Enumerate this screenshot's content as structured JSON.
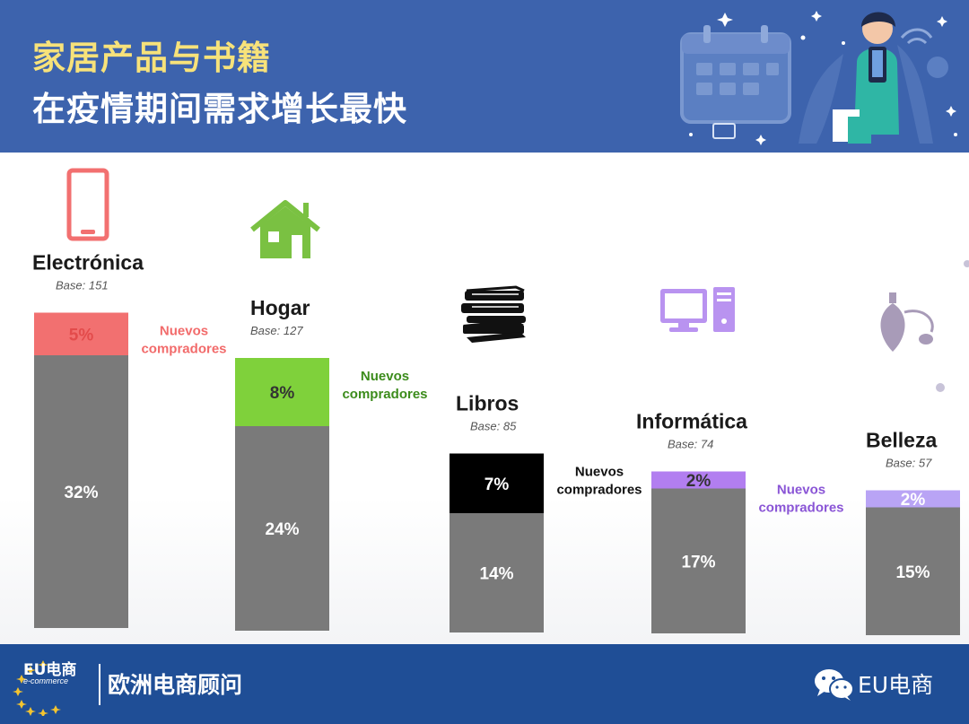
{
  "header": {
    "title_line1": "家居产品与书籍",
    "title_line2": "在疫情期间需求增长最快"
  },
  "footer": {
    "logo_text": "EU电商",
    "logo_subtext": "e-commerce",
    "name": "欧洲电商顾问",
    "brand": "EU电商"
  },
  "colors": {
    "header_bg": "#3d63ad",
    "title_yellow": "#f7e27a",
    "footer_bg": "#1f4e96",
    "bar_gray": "#7a7a7a"
  },
  "chart_data": {
    "type": "bar",
    "stacked": true,
    "categories": [
      "Electrónica",
      "Hogar",
      "Libros",
      "Informática",
      "Belleza"
    ],
    "bases": [
      "Base: 151",
      "Base: 127",
      "Base: 85",
      "Base: 74",
      "Base: 57"
    ],
    "series": [
      {
        "values": [
          32,
          24,
          14,
          17,
          15
        ],
        "labels": [
          "32%",
          "24%",
          "14%",
          "17%",
          "15%"
        ]
      },
      {
        "name": "Nuevos compradores",
        "values": [
          5,
          8,
          7,
          2,
          2
        ],
        "labels": [
          "5%",
          "8%",
          "7%",
          "2%",
          "2%"
        ],
        "colors": [
          "#f27070",
          "#7fd13b",
          "#000000",
          "#b27ef0",
          "#b9a4f5"
        ],
        "label_colors": [
          "#e34b4b",
          "#333333",
          "#ffffff",
          "#333333",
          "#ffffff"
        ]
      }
    ],
    "annotations": [
      {
        "category": "Electrónica",
        "line1": "Nuevos",
        "line2": "compradores",
        "color": "#f26b6b"
      },
      {
        "category": "Hogar",
        "line1": "Nuevos",
        "line2": "compradores",
        "color": "#3c8c1c"
      },
      {
        "category": "Libros",
        "line1": "Nuevos",
        "line2": "compradores",
        "color": "#111111"
      },
      {
        "category": "Informática",
        "line1": "Nuevos",
        "line2": "compradores",
        "color": "#8a55d6"
      }
    ],
    "icons": [
      "smartphone-icon",
      "house-icon",
      "books-icon",
      "computer-icon",
      "perfume-bottle-icon"
    ],
    "icon_colors": [
      "#f27070",
      "#7ac142",
      "#111111",
      "#b993f0",
      "#a89bb8"
    ],
    "grid": false
  }
}
